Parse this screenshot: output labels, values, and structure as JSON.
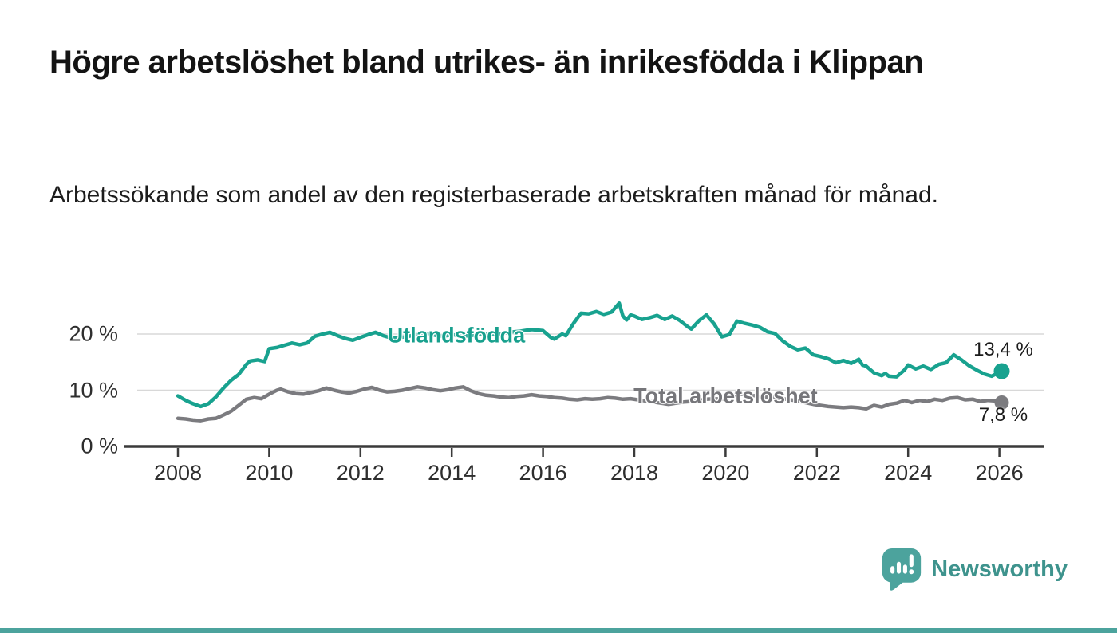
{
  "header": {
    "title": "Högre arbetslöshet bland utrikes- än inrikesfödda i Klippan",
    "subtitle": "Arbetssökande som andel av den registerbaserade arbetskraften månad för månad."
  },
  "footer": {
    "brand": "Newsworthy",
    "brand_color": "#3e938d",
    "logo_color": "#4ca39d",
    "accent_bar_color": "#4ca39d"
  },
  "chart_data": {
    "type": "line",
    "title": "Högre arbetslöshet bland utrikes- än inrikesfödda i Klippan",
    "subtitle": "Arbetssökande som andel av den registerbaserade arbetskraften månad för månad.",
    "xlabel": "",
    "ylabel": "",
    "grid": true,
    "legend_position": "inline-labels",
    "xlim": [
      2007.1,
      2027.0
    ],
    "ylim": [
      0,
      26.5
    ],
    "x_ticks": [
      2008,
      2010,
      2012,
      2014,
      2016,
      2018,
      2020,
      2022,
      2024,
      2026
    ],
    "y_ticks": [
      {
        "value": 0,
        "label": "0 %"
      },
      {
        "value": 10,
        "label": "10 %"
      },
      {
        "value": 20,
        "label": "20 %"
      }
    ],
    "axis_color": "#3a3a3a",
    "gridline_color": "#d8d8d8",
    "series": [
      {
        "name": "Utlandsfödda",
        "color": "#18a28f",
        "end_value": 13.4,
        "end_label": "13,4 %",
        "end_label_position": "above",
        "points": [
          [
            2008.0,
            9.0
          ],
          [
            2008.17,
            8.2
          ],
          [
            2008.33,
            7.6
          ],
          [
            2008.5,
            7.1
          ],
          [
            2008.67,
            7.6
          ],
          [
            2008.83,
            8.8
          ],
          [
            2009.0,
            10.4
          ],
          [
            2009.17,
            11.8
          ],
          [
            2009.33,
            12.8
          ],
          [
            2009.5,
            14.6
          ],
          [
            2009.58,
            15.2
          ],
          [
            2009.75,
            15.4
          ],
          [
            2009.9,
            15.1
          ],
          [
            2010.0,
            17.4
          ],
          [
            2010.17,
            17.6
          ],
          [
            2010.33,
            18.0
          ],
          [
            2010.5,
            18.4
          ],
          [
            2010.67,
            18.1
          ],
          [
            2010.83,
            18.4
          ],
          [
            2011.0,
            19.6
          ],
          [
            2011.17,
            20.0
          ],
          [
            2011.33,
            20.3
          ],
          [
            2011.5,
            19.7
          ],
          [
            2011.67,
            19.2
          ],
          [
            2011.83,
            18.9
          ],
          [
            2012.0,
            19.4
          ],
          [
            2012.17,
            19.9
          ],
          [
            2012.33,
            20.3
          ],
          [
            2012.5,
            19.7
          ],
          [
            2012.67,
            19.3
          ],
          [
            2012.83,
            19.4
          ],
          [
            2013.0,
            19.5
          ],
          [
            2013.17,
            19.8
          ],
          [
            2013.33,
            20.0
          ],
          [
            2013.5,
            20.1
          ],
          [
            2013.67,
            19.7
          ],
          [
            2013.83,
            19.6
          ],
          [
            2014.0,
            19.9
          ],
          [
            2014.25,
            19.6
          ],
          [
            2014.5,
            19.8
          ],
          [
            2014.75,
            20.1
          ],
          [
            2015.0,
            20.0
          ],
          [
            2015.25,
            20.3
          ],
          [
            2015.5,
            20.5
          ],
          [
            2015.75,
            20.8
          ],
          [
            2016.0,
            20.6
          ],
          [
            2016.17,
            19.4
          ],
          [
            2016.25,
            19.1
          ],
          [
            2016.42,
            20.0
          ],
          [
            2016.5,
            19.7
          ],
          [
            2016.67,
            21.9
          ],
          [
            2016.83,
            23.7
          ],
          [
            2017.0,
            23.6
          ],
          [
            2017.17,
            24.0
          ],
          [
            2017.33,
            23.5
          ],
          [
            2017.5,
            23.9
          ],
          [
            2017.67,
            25.5
          ],
          [
            2017.75,
            23.2
          ],
          [
            2017.83,
            22.5
          ],
          [
            2017.92,
            23.4
          ],
          [
            2018.0,
            23.2
          ],
          [
            2018.17,
            22.6
          ],
          [
            2018.33,
            22.9
          ],
          [
            2018.5,
            23.3
          ],
          [
            2018.67,
            22.6
          ],
          [
            2018.83,
            23.2
          ],
          [
            2019.0,
            22.4
          ],
          [
            2019.17,
            21.3
          ],
          [
            2019.25,
            20.9
          ],
          [
            2019.42,
            22.4
          ],
          [
            2019.58,
            23.4
          ],
          [
            2019.75,
            21.8
          ],
          [
            2019.92,
            19.5
          ],
          [
            2020.08,
            19.9
          ],
          [
            2020.25,
            22.3
          ],
          [
            2020.42,
            21.9
          ],
          [
            2020.58,
            21.6
          ],
          [
            2020.75,
            21.2
          ],
          [
            2020.92,
            20.4
          ],
          [
            2021.08,
            20.1
          ],
          [
            2021.25,
            18.8
          ],
          [
            2021.42,
            17.8
          ],
          [
            2021.58,
            17.2
          ],
          [
            2021.75,
            17.5
          ],
          [
            2021.92,
            16.3
          ],
          [
            2022.08,
            16.0
          ],
          [
            2022.25,
            15.6
          ],
          [
            2022.42,
            14.9
          ],
          [
            2022.58,
            15.3
          ],
          [
            2022.75,
            14.8
          ],
          [
            2022.92,
            15.5
          ],
          [
            2023.0,
            14.5
          ],
          [
            2023.08,
            14.3
          ],
          [
            2023.25,
            13.1
          ],
          [
            2023.42,
            12.6
          ],
          [
            2023.5,
            13.0
          ],
          [
            2023.58,
            12.5
          ],
          [
            2023.75,
            12.4
          ],
          [
            2023.92,
            13.6
          ],
          [
            2024.0,
            14.5
          ],
          [
            2024.17,
            13.8
          ],
          [
            2024.33,
            14.3
          ],
          [
            2024.5,
            13.7
          ],
          [
            2024.67,
            14.6
          ],
          [
            2024.83,
            14.9
          ],
          [
            2025.0,
            16.3
          ],
          [
            2025.17,
            15.4
          ],
          [
            2025.33,
            14.4
          ],
          [
            2025.5,
            13.6
          ],
          [
            2025.67,
            12.9
          ],
          [
            2025.83,
            12.5
          ],
          [
            2026.0,
            13.2
          ],
          [
            2026.05,
            13.4
          ]
        ]
      },
      {
        "name": "Total arbetslöshet",
        "color": "#7b7b7f",
        "end_value": 7.8,
        "end_label": "7,8 %",
        "end_label_position": "below",
        "points": [
          [
            2008.0,
            5.0
          ],
          [
            2008.17,
            4.9
          ],
          [
            2008.33,
            4.7
          ],
          [
            2008.5,
            4.6
          ],
          [
            2008.67,
            4.9
          ],
          [
            2008.83,
            5.0
          ],
          [
            2009.0,
            5.6
          ],
          [
            2009.17,
            6.3
          ],
          [
            2009.33,
            7.3
          ],
          [
            2009.5,
            8.4
          ],
          [
            2009.67,
            8.7
          ],
          [
            2009.83,
            8.5
          ],
          [
            2010.0,
            9.3
          ],
          [
            2010.17,
            10.0
          ],
          [
            2010.25,
            10.2
          ],
          [
            2010.42,
            9.7
          ],
          [
            2010.58,
            9.4
          ],
          [
            2010.75,
            9.3
          ],
          [
            2010.92,
            9.6
          ],
          [
            2011.08,
            9.9
          ],
          [
            2011.25,
            10.4
          ],
          [
            2011.42,
            10.0
          ],
          [
            2011.58,
            9.7
          ],
          [
            2011.75,
            9.5
          ],
          [
            2011.92,
            9.8
          ],
          [
            2012.08,
            10.2
          ],
          [
            2012.25,
            10.5
          ],
          [
            2012.42,
            10.0
          ],
          [
            2012.58,
            9.7
          ],
          [
            2012.75,
            9.8
          ],
          [
            2012.92,
            10.0
          ],
          [
            2013.08,
            10.3
          ],
          [
            2013.25,
            10.6
          ],
          [
            2013.42,
            10.4
          ],
          [
            2013.58,
            10.1
          ],
          [
            2013.75,
            9.9
          ],
          [
            2013.92,
            10.1
          ],
          [
            2014.08,
            10.4
          ],
          [
            2014.25,
            10.6
          ],
          [
            2014.42,
            9.9
          ],
          [
            2014.58,
            9.4
          ],
          [
            2014.75,
            9.1
          ],
          [
            2014.92,
            9.0
          ],
          [
            2015.08,
            8.8
          ],
          [
            2015.25,
            8.7
          ],
          [
            2015.42,
            8.9
          ],
          [
            2015.58,
            9.0
          ],
          [
            2015.75,
            9.2
          ],
          [
            2015.92,
            9.0
          ],
          [
            2016.08,
            8.9
          ],
          [
            2016.25,
            8.7
          ],
          [
            2016.42,
            8.6
          ],
          [
            2016.58,
            8.4
          ],
          [
            2016.75,
            8.3
          ],
          [
            2016.92,
            8.5
          ],
          [
            2017.08,
            8.4
          ],
          [
            2017.25,
            8.5
          ],
          [
            2017.42,
            8.7
          ],
          [
            2017.58,
            8.6
          ],
          [
            2017.75,
            8.4
          ],
          [
            2017.92,
            8.5
          ],
          [
            2018.08,
            8.3
          ],
          [
            2018.25,
            8.1
          ],
          [
            2018.42,
            7.9
          ],
          [
            2018.58,
            7.7
          ],
          [
            2018.75,
            7.5
          ],
          [
            2018.92,
            7.7
          ],
          [
            2019.08,
            7.9
          ],
          [
            2019.25,
            8.0
          ],
          [
            2019.42,
            8.2
          ],
          [
            2019.58,
            8.4
          ],
          [
            2019.75,
            8.5
          ],
          [
            2019.92,
            8.4
          ],
          [
            2020.08,
            8.7
          ],
          [
            2020.25,
            9.4
          ],
          [
            2020.42,
            9.2
          ],
          [
            2020.58,
            9.1
          ],
          [
            2020.75,
            8.9
          ],
          [
            2020.92,
            8.8
          ],
          [
            2021.08,
            8.7
          ],
          [
            2021.25,
            8.5
          ],
          [
            2021.42,
            8.3
          ],
          [
            2021.58,
            8.1
          ],
          [
            2021.75,
            7.8
          ],
          [
            2021.92,
            7.5
          ],
          [
            2022.08,
            7.3
          ],
          [
            2022.25,
            7.1
          ],
          [
            2022.42,
            7.0
          ],
          [
            2022.58,
            6.9
          ],
          [
            2022.75,
            7.0
          ],
          [
            2022.92,
            6.9
          ],
          [
            2023.08,
            6.7
          ],
          [
            2023.25,
            7.3
          ],
          [
            2023.42,
            7.0
          ],
          [
            2023.58,
            7.5
          ],
          [
            2023.75,
            7.7
          ],
          [
            2023.92,
            8.2
          ],
          [
            2024.08,
            7.8
          ],
          [
            2024.25,
            8.2
          ],
          [
            2024.42,
            8.0
          ],
          [
            2024.58,
            8.4
          ],
          [
            2024.75,
            8.2
          ],
          [
            2024.92,
            8.6
          ],
          [
            2025.08,
            8.7
          ],
          [
            2025.25,
            8.3
          ],
          [
            2025.42,
            8.4
          ],
          [
            2025.58,
            8.0
          ],
          [
            2025.75,
            8.2
          ],
          [
            2025.92,
            8.1
          ],
          [
            2026.05,
            7.8
          ]
        ]
      }
    ],
    "series_labels": [
      {
        "text": "Utlandsfödda",
        "x": 2014.1,
        "y": 19.7,
        "color": "#17a08d"
      },
      {
        "text": "Total arbetslöshet",
        "x": 2020.0,
        "y": 8.9,
        "color": "#76767a"
      }
    ]
  }
}
